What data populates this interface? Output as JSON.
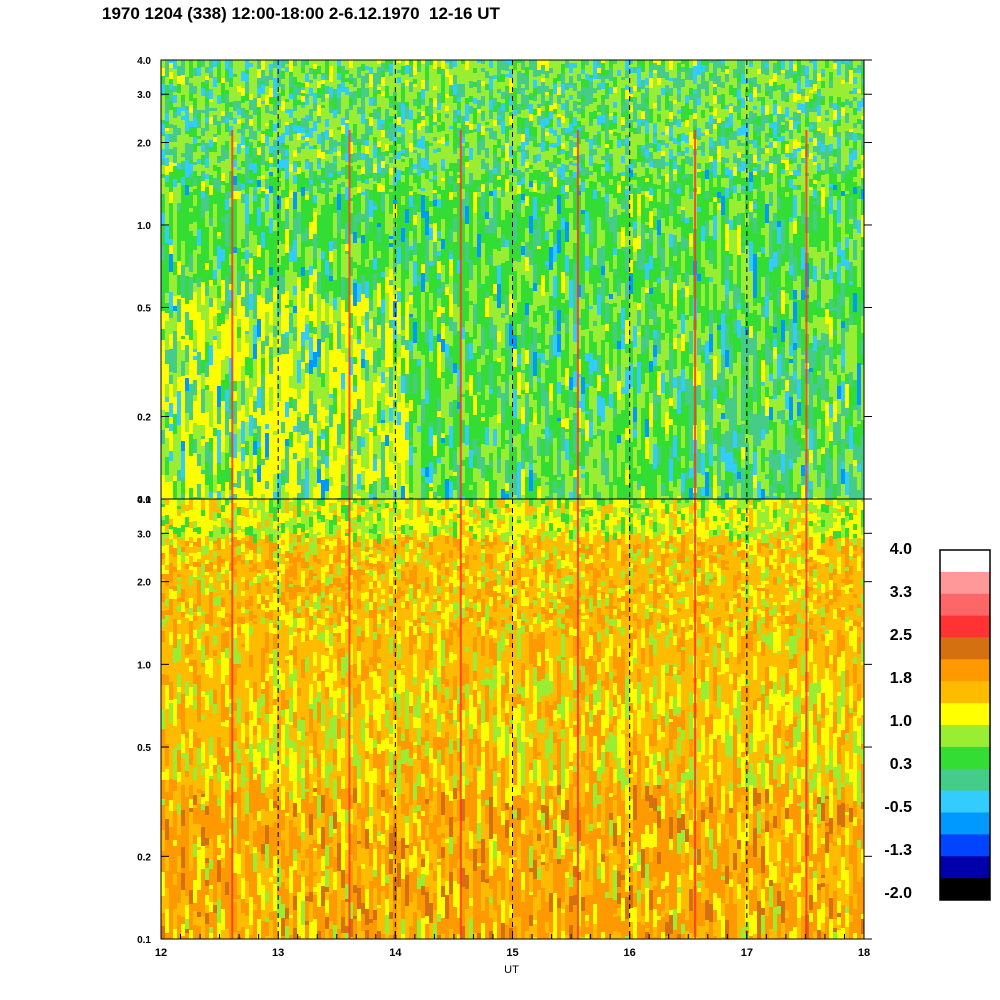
{
  "title": "1970 1204 (338) 12:00-18:00 2-6.12.1970  12-16 UT",
  "chart_data": [
    {
      "type": "heatmap",
      "panel": "upper",
      "x": {
        "label": "UT",
        "range": [
          12,
          18
        ],
        "ticks": [
          "12",
          "13",
          "14",
          "15",
          "16",
          "17",
          "18"
        ]
      },
      "y": {
        "scale": "log",
        "range": [
          0.1,
          4.0
        ],
        "ticks": [
          {
            "value": 0.1,
            "label": "0.1"
          },
          {
            "value": 0.2,
            "label": "0.2"
          },
          {
            "value": 0.5,
            "label": "0.5"
          },
          {
            "value": 1.0,
            "label": "1.0"
          },
          {
            "value": 2.0,
            "label": "2.0"
          },
          {
            "value": 3.0,
            "label": "3.0"
          },
          {
            "value": 4.0,
            "label": "4.0"
          }
        ]
      },
      "dominant_levels": [
        "0.3",
        "1.0"
      ],
      "description_levels_by_band": {
        "low_freq": "0.3 to 1.0",
        "mid_freq": "0.3 to 1.0",
        "high_freq": "-0.5 to 1.0"
      },
      "vertical_dashed_lines_UT": [
        13,
        14,
        15,
        16,
        17
      ]
    },
    {
      "type": "heatmap",
      "panel": "lower",
      "x": {
        "label": "UT",
        "range": [
          12,
          18
        ],
        "ticks": [
          "12",
          "13",
          "14",
          "15",
          "16",
          "17",
          "18"
        ]
      },
      "y": {
        "scale": "log",
        "range": [
          0.1,
          4.0
        ],
        "ticks": [
          {
            "value": 0.1,
            "label": "0.1"
          },
          {
            "value": 0.2,
            "label": "0.2"
          },
          {
            "value": 0.5,
            "label": "0.5"
          },
          {
            "value": 1.0,
            "label": "1.0"
          },
          {
            "value": 2.0,
            "label": "2.0"
          },
          {
            "value": 3.0,
            "label": "3.0"
          },
          {
            "value": 4.0,
            "label": "4.0"
          }
        ]
      },
      "dominant_levels": [
        "1.8",
        "1.0"
      ],
      "description_levels_by_band": {
        "low_freq": "1.0 to 2.5",
        "mid_freq": "1.0 to 1.8",
        "high_freq": "0.3 to 1.8"
      },
      "vertical_dashed_lines_UT": [
        13,
        14,
        15,
        16,
        17
      ]
    }
  ],
  "colorbar": {
    "labels": [
      "4.0",
      "3.3",
      "2.5",
      "1.8",
      "1.0",
      "0.3",
      "-0.5",
      "-1.3",
      "-2.0"
    ],
    "colors": [
      "#ffffff",
      "#ff9999",
      "#ff6666",
      "#ff3333",
      "#d4700f",
      "#ff9900",
      "#ffbb00",
      "#ffff00",
      "#99ee33",
      "#33dd33",
      "#44cc88",
      "#33ccff",
      "#0099ff",
      "#0044ff",
      "#0000aa",
      "#000000"
    ]
  },
  "palette": {
    "upper_main": [
      "#99ee33",
      "#33dd33",
      "#44cc88",
      "#33ccff",
      "#ffff00",
      "#0099ff"
    ],
    "lower_main": [
      "#ff9900",
      "#ffbb00",
      "#ffff00",
      "#99ee33",
      "#d4700f"
    ],
    "spike": "#ff3333"
  }
}
